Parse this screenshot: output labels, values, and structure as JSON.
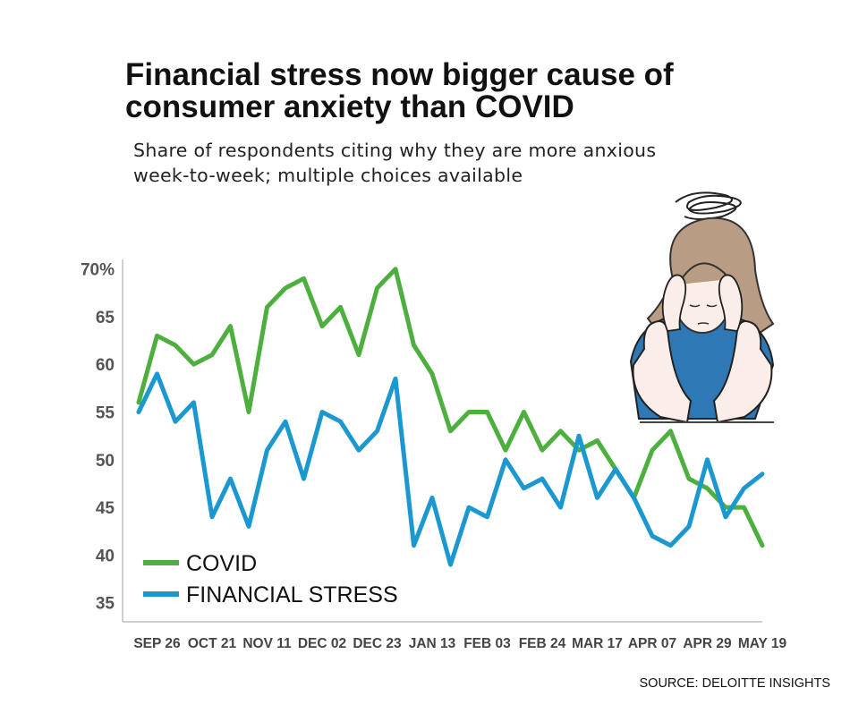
{
  "header": {
    "title": "Financial stress now bigger cause of consumer anxiety than COVID",
    "subtitle": "Share of respondents citing why they are more anxious week-to-week; multiple choices available"
  },
  "footer": {
    "source": "SOURCE: DELOITTE INSIGHTS"
  },
  "illustration": {
    "icon": "stressed-woman-illustration"
  },
  "colors": {
    "covid": "#4caf3e",
    "financial": "#1b98cf",
    "axis": "#cfcfcf",
    "tick_text": "#555555"
  },
  "chart_data": {
    "type": "line",
    "title": "Financial stress now bigger cause of consumer anxiety than COVID",
    "subtitle": "Share of respondents citing why they are more anxious week-to-week; multiple choices available",
    "xlabel": "",
    "ylabel": "",
    "ylim": [
      33,
      71
    ],
    "ytick_values": [
      35,
      40,
      45,
      50,
      55,
      60,
      65,
      70
    ],
    "ytick_labels": [
      "35",
      "40",
      "45",
      "50",
      "55",
      "60",
      "65",
      "70%"
    ],
    "x_tick_labels": [
      "SEP 26",
      "OCT 21",
      "NOV 11",
      "DEC 02",
      "DEC 23",
      "JAN 13",
      "FEB 03",
      "FEB 24",
      "MAR 17",
      "APR 07",
      "APR 29",
      "MAY 19"
    ],
    "x_tick_indices": [
      1,
      4,
      7,
      10,
      13,
      16,
      19,
      22,
      25,
      28,
      31,
      34
    ],
    "grid": false,
    "legend": "bottom-left",
    "series": [
      {
        "name": "COVID",
        "values": [
          56,
          63,
          62,
          60,
          61,
          64,
          55,
          66,
          68,
          69,
          64,
          66,
          61,
          68,
          70,
          62,
          59,
          53,
          55,
          55,
          51,
          55,
          51,
          53,
          51,
          52,
          49,
          46,
          51,
          53,
          48,
          47,
          45,
          45,
          41
        ]
      },
      {
        "name": "FINANCIAL STRESS",
        "values": [
          55,
          59,
          54,
          56,
          44,
          48,
          43,
          51,
          54,
          48,
          55,
          54,
          51,
          53,
          58.5,
          41,
          46,
          39,
          45,
          44,
          50,
          47,
          48,
          45,
          52.5,
          46,
          49,
          46,
          42,
          41,
          43,
          50,
          44,
          47,
          48.5
        ]
      }
    ]
  }
}
